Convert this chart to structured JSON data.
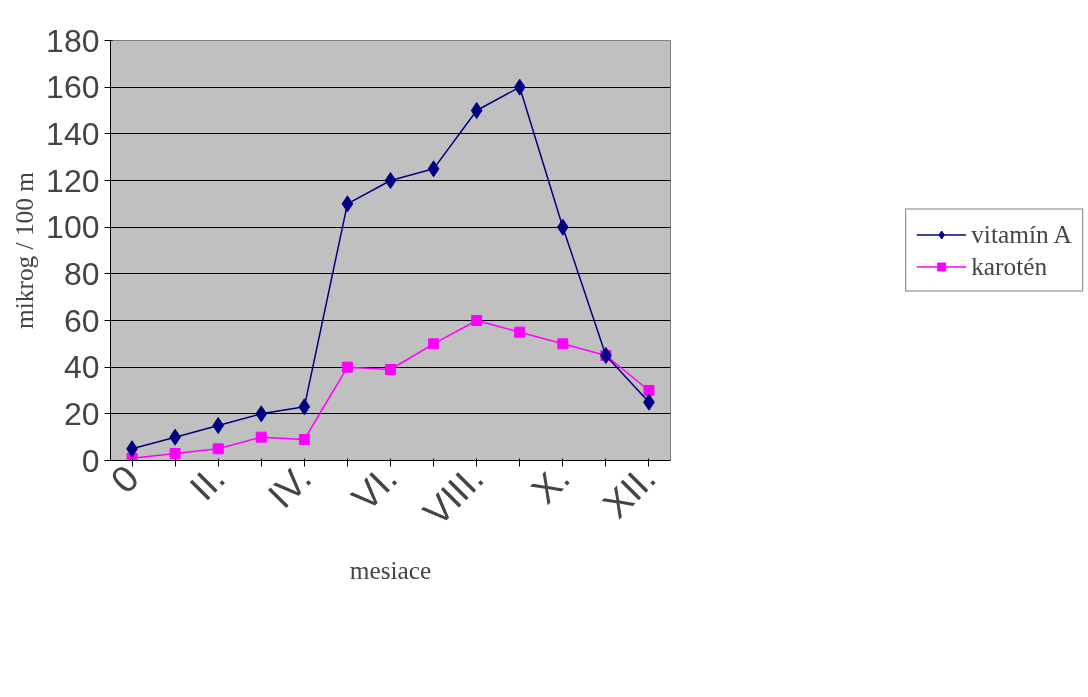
{
  "chart_data": {
    "type": "line",
    "xlabel": "mesiace",
    "ylabel": "mikrog / 100 m",
    "categories": [
      "0",
      null,
      "II.",
      null,
      "IV.",
      null,
      "VI.",
      null,
      "VIII.",
      null,
      "X.",
      null,
      "XII."
    ],
    "series": [
      {
        "name": "vitamín A",
        "color": "#000080",
        "marker": "diamond",
        "values": [
          5,
          10,
          15,
          20,
          23,
          110,
          120,
          125,
          150,
          160,
          100,
          45,
          25
        ]
      },
      {
        "name": "karotén",
        "color": "#ff00ff",
        "marker": "square",
        "values": [
          1,
          3,
          5,
          10,
          9,
          40,
          39,
          50,
          60,
          55,
          50,
          45,
          30
        ]
      }
    ],
    "ylim": [
      0,
      180
    ],
    "yticks": [
      0,
      20,
      40,
      60,
      80,
      100,
      120,
      140,
      160,
      180
    ],
    "grid": "y",
    "legend": "right",
    "line_style": "solid"
  }
}
